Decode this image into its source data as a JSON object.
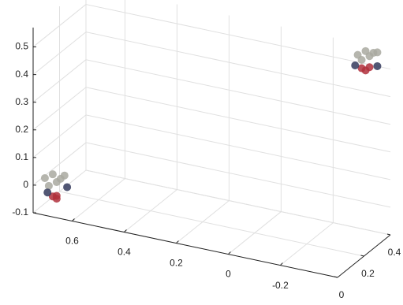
{
  "chart_data": {
    "type": "scatter3d",
    "xlim": [
      -0.42,
      0.75
    ],
    "ylim": [
      0,
      0.4
    ],
    "zlim": [
      -0.1,
      0.57
    ],
    "xticks": [
      -0.2,
      0,
      0.2,
      0.4,
      0.6
    ],
    "yticks": [
      0,
      0.2,
      0.4
    ],
    "zticks": [
      -0.1,
      0,
      0.1,
      0.2,
      0.3,
      0.4,
      0.5
    ],
    "grid": true,
    "series": [
      {
        "color": "#a9a9a0",
        "x": [
          0.72,
          0.7,
          0.68,
          0.71,
          0.69,
          0.67,
          -0.33,
          -0.35,
          -0.37,
          -0.34,
          -0.36,
          -0.38
        ],
        "y": [
          0.03,
          0.05,
          0.07,
          0.04,
          0.06,
          0.08,
          0.33,
          0.35,
          0.37,
          0.34,
          0.36,
          0.38
        ],
        "z": [
          0.02,
          0.03,
          0.01,
          -0.01,
          0.0,
          0.02,
          0.56,
          0.57,
          0.56,
          0.54,
          0.55,
          0.56
        ]
      },
      {
        "color": "#b0303c",
        "x": [
          0.7,
          0.69,
          0.68,
          -0.34,
          -0.35,
          -0.36
        ],
        "y": [
          0.05,
          0.06,
          0.04,
          0.34,
          0.35,
          0.36
        ],
        "z": [
          -0.05,
          -0.06,
          -0.04,
          0.51,
          0.5,
          0.51
        ]
      },
      {
        "color": "#343a5c",
        "x": [
          0.71,
          0.66,
          -0.32,
          -0.38
        ],
        "y": [
          0.03,
          0.08,
          0.33,
          0.38
        ],
        "z": [
          -0.03,
          -0.02,
          0.52,
          0.51
        ]
      }
    ]
  }
}
